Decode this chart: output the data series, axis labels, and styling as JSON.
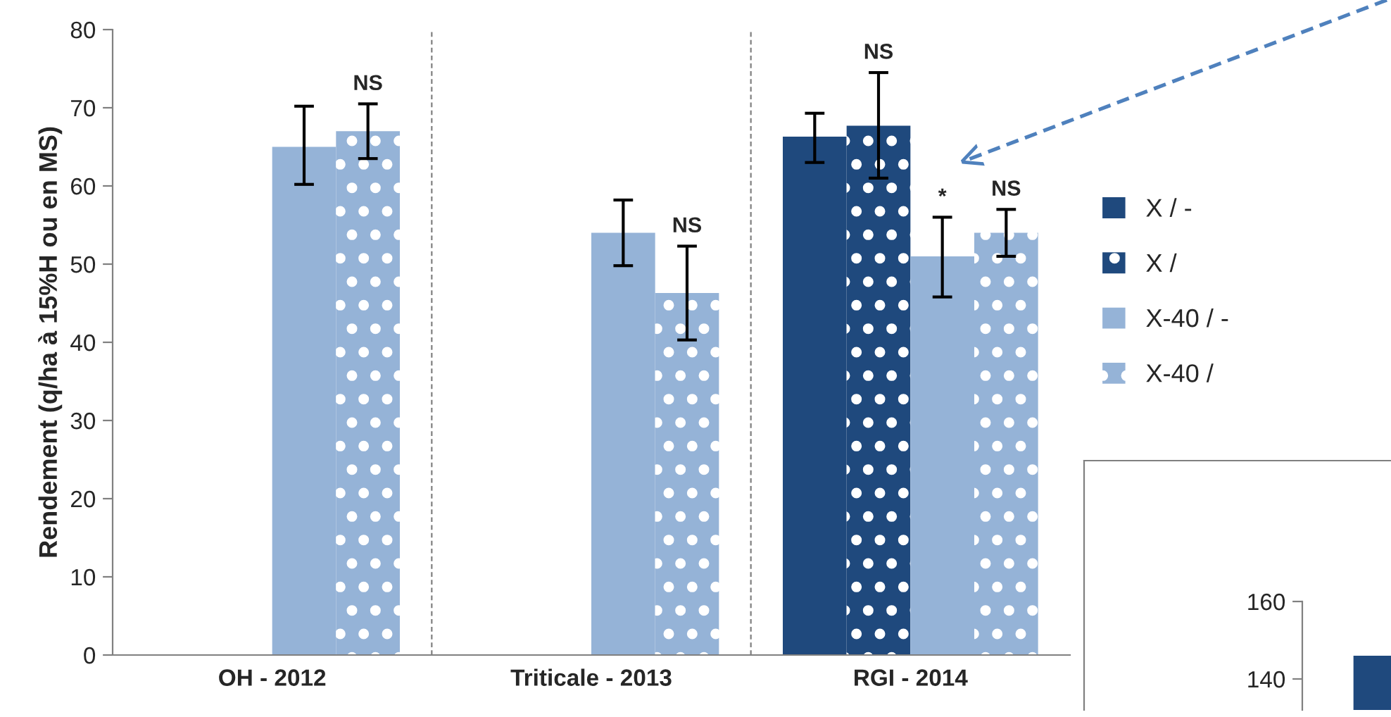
{
  "chart_data": [
    {
      "type": "bar",
      "ylabel": "Rendement (q/ha à 15%H ou en MS)",
      "categories": [
        "OH - 2012",
        "Triticale - 2013",
        "RGI - 2014"
      ],
      "ylim": [
        0,
        80
      ],
      "yticks": [
        0,
        10,
        20,
        30,
        40,
        50,
        60,
        70,
        80
      ],
      "grid": false,
      "legend": "right",
      "series": [
        {
          "name": "X / -",
          "color": "#1f497d",
          "values": [
            null,
            null,
            66.3
          ],
          "errors": [
            null,
            null,
            [
              63.0,
              69.3
            ]
          ],
          "value_labels": [
            null,
            null,
            null
          ]
        },
        {
          "name": "X /",
          "color": "#1f497d",
          "values": [
            null,
            null,
            67.7
          ],
          "errors": [
            null,
            null,
            [
              61.0,
              74.5
            ]
          ],
          "value_labels": [
            null,
            null,
            "NS"
          ]
        },
        {
          "name": "X-40 / -",
          "color": "#95b3d7",
          "values": [
            65.0,
            54.0,
            51.0
          ],
          "errors": [
            [
              60.2,
              70.2
            ],
            [
              49.8,
              58.2
            ],
            [
              45.8,
              56.0
            ]
          ],
          "value_labels": [
            null,
            null,
            "*"
          ]
        },
        {
          "name": "X-40 /",
          "color": "#95b3d7",
          "values": [
            67.0,
            46.3,
            54.0
          ],
          "errors": [
            [
              63.5,
              70.5
            ],
            [
              40.3,
              52.3
            ],
            [
              51.0,
              57.0
            ]
          ],
          "value_labels": [
            "NS",
            "NS",
            "NS"
          ]
        }
      ]
    },
    {
      "type": "bar",
      "categories": [
        null
      ],
      "ylim": [
        132,
        160
      ],
      "yticks": [
        140,
        160
      ],
      "tick_labels": "y",
      "series": [
        {
          "color": "#1f497d",
          "values": [
            146
          ]
        }
      ]
    }
  ]
}
